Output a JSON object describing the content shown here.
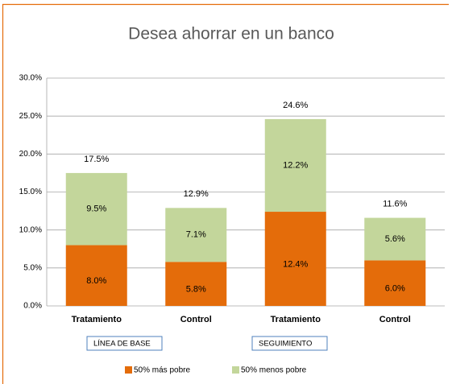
{
  "chart_data": {
    "type": "stacked_bar",
    "title": "Desea ahorrar en un banco",
    "categories": [
      "Tratamiento",
      "Control",
      "Tratamiento",
      "Control"
    ],
    "group_labels": [
      "LÍNEA DE BASE",
      "SEGUIMIENTO"
    ],
    "series": [
      {
        "name": "50% más pobre",
        "color": "#e46c0a",
        "values": [
          8.0,
          5.8,
          12.4,
          6.0
        ],
        "value_labels": [
          "8.0%",
          "5.8%",
          "12.4%",
          "6.0%"
        ]
      },
      {
        "name": "50% menos pobre",
        "color": "#c3d69b",
        "values": [
          9.5,
          7.1,
          12.2,
          5.6
        ],
        "value_labels": [
          "9.5%",
          "7.1%",
          "12.2%",
          "5.6%"
        ]
      }
    ],
    "totals": [
      17.5,
      12.9,
      24.6,
      11.6
    ],
    "total_labels": [
      "17.5%",
      "12.9%",
      "24.6%",
      "11.6%"
    ],
    "ylim": [
      0,
      30
    ],
    "yticks": [
      {
        "value": 0,
        "label": "0.0%"
      },
      {
        "value": 5,
        "label": "5.0%"
      },
      {
        "value": 10,
        "label": "10.0%"
      },
      {
        "value": 15,
        "label": "15.0%"
      },
      {
        "value": 20,
        "label": "20.0%"
      },
      {
        "value": 25,
        "label": "25.0%"
      },
      {
        "value": 30,
        "label": "30.0%"
      }
    ],
    "grid": true,
    "legend": "bottom"
  }
}
